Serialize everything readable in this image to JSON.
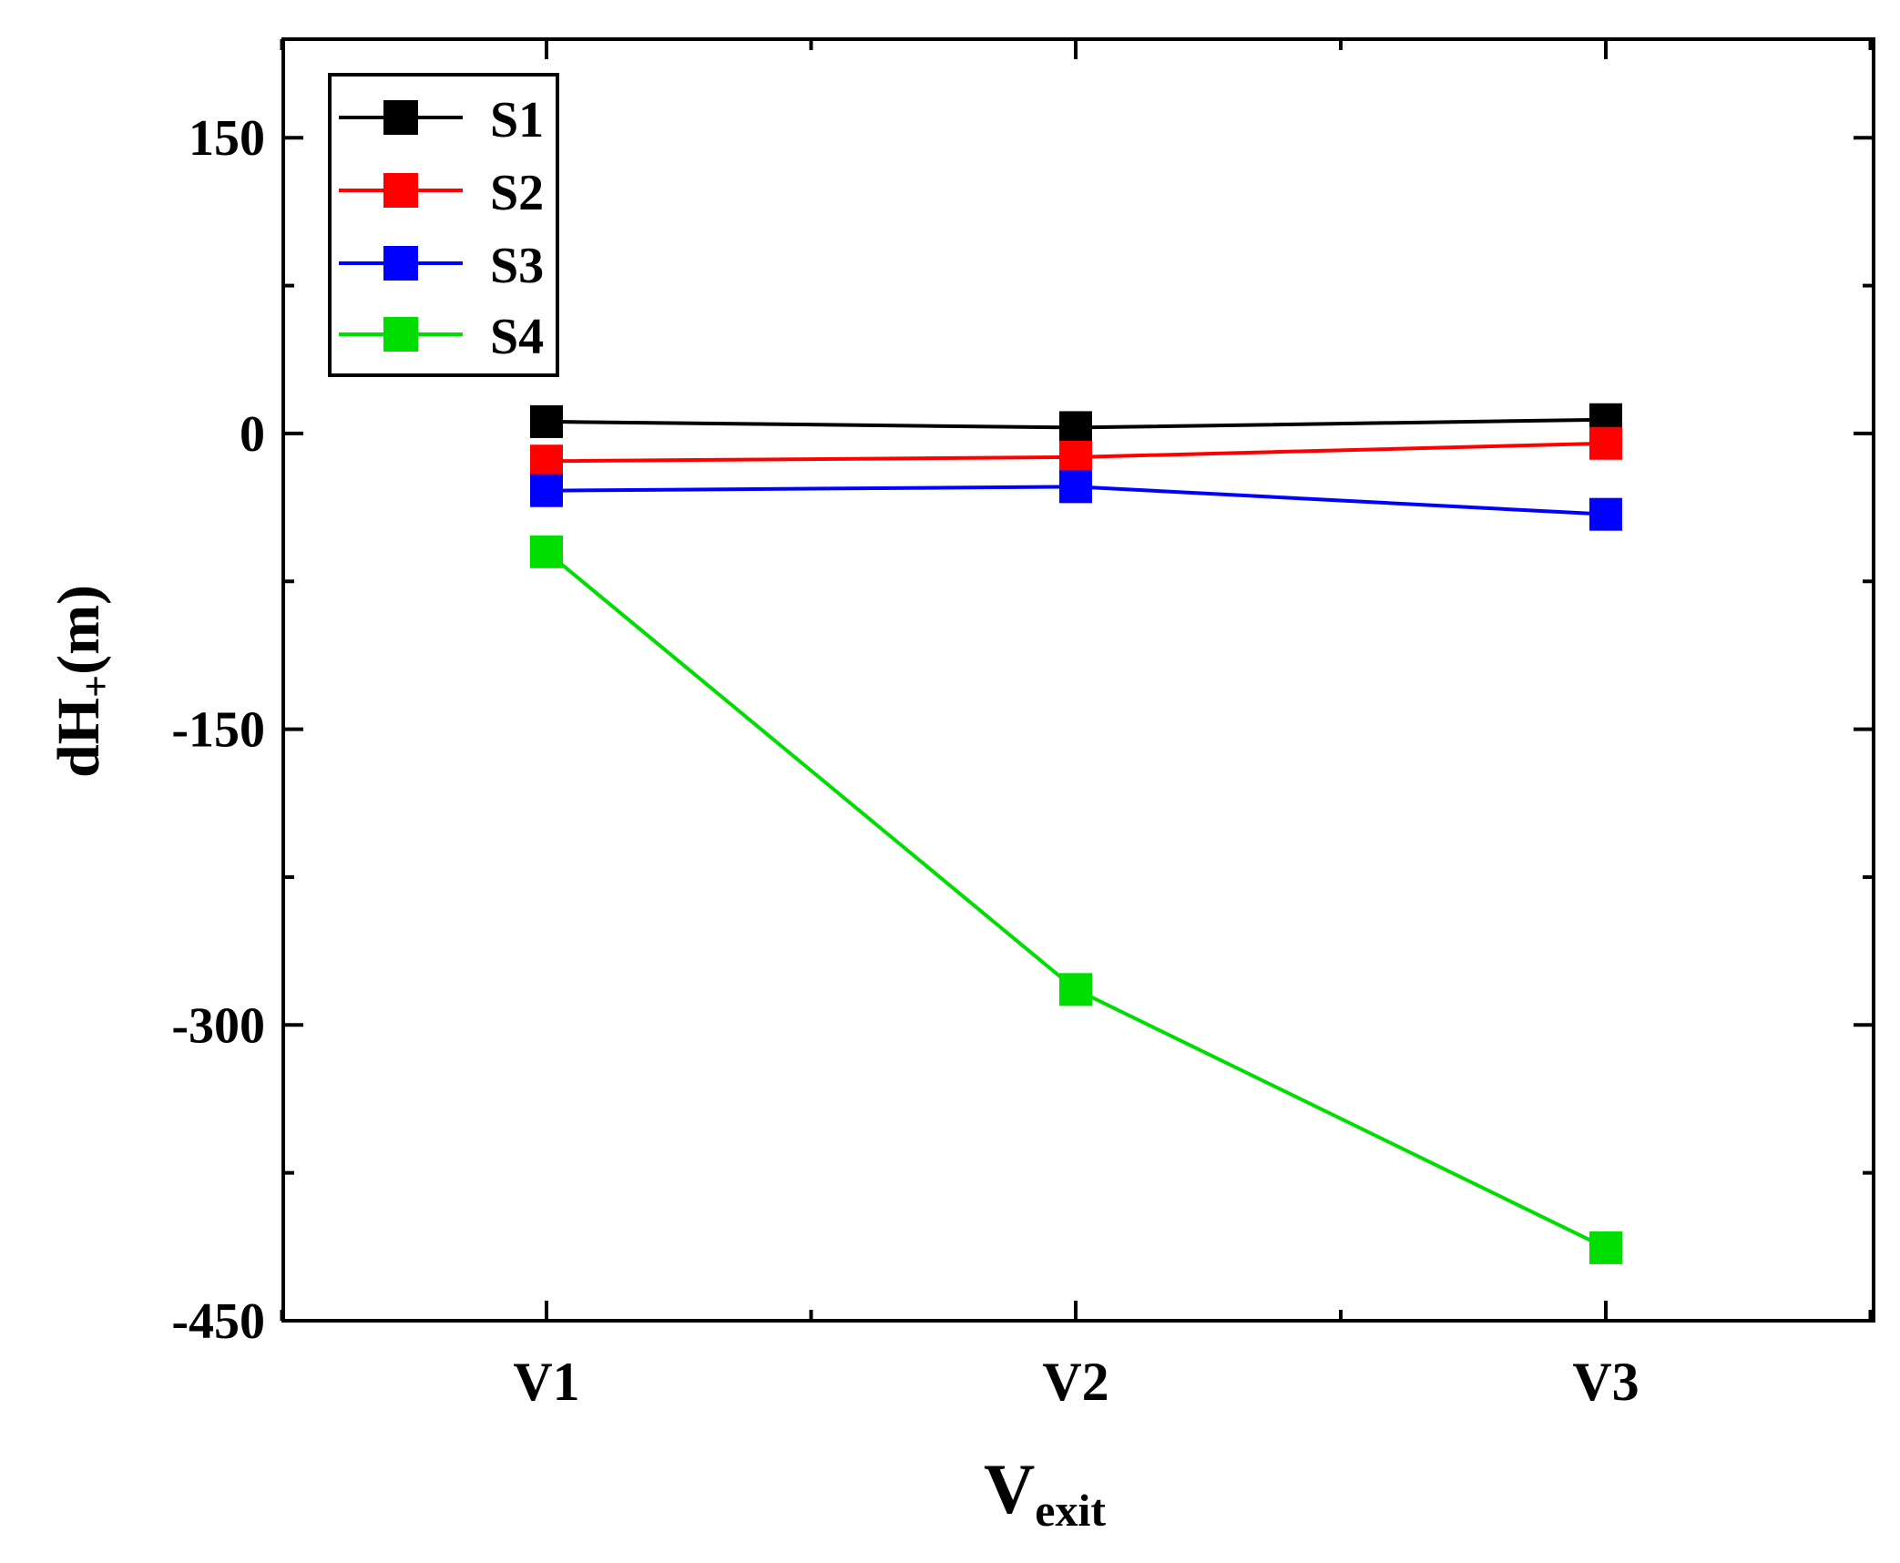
{
  "chart_data": {
    "type": "line",
    "title": "",
    "xlabel": {
      "main": "V",
      "sub": "exit"
    },
    "ylabel": {
      "main": "dH",
      "sub": "+",
      "unit": "(m)"
    },
    "categories": [
      "V1",
      "V2",
      "V3"
    ],
    "ylim": [
      -450,
      200
    ],
    "yticks": [
      150,
      0,
      -150,
      -300,
      -450
    ],
    "ytick_labels": [
      "150",
      "0",
      "-150",
      "-300",
      "-450"
    ],
    "grid": false,
    "legend_position": "top-left",
    "series": [
      {
        "name": "S1",
        "color": "#000000",
        "values": [
          6,
          3,
          7
        ]
      },
      {
        "name": "S2",
        "color": "#ff0000",
        "values": [
          -14,
          -12,
          -5
        ]
      },
      {
        "name": "S3",
        "color": "#0000ff",
        "values": [
          -29,
          -27,
          -41
        ]
      },
      {
        "name": "S4",
        "color": "#00dd00",
        "values": [
          -60,
          -282,
          -413
        ]
      }
    ]
  }
}
